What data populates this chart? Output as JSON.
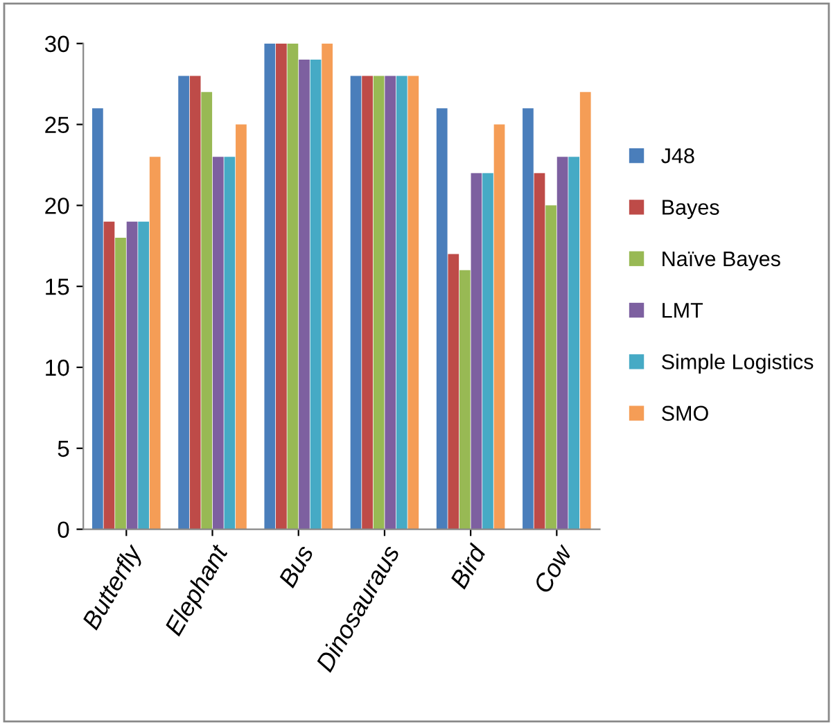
{
  "chart_data": {
    "type": "bar",
    "categories": [
      "Butterfly",
      "Elephant",
      "Bus",
      "Dinosauraus",
      "Bird",
      "Cow"
    ],
    "series": [
      {
        "name": "J48",
        "color": "#4a7ebb",
        "values": [
          26,
          28,
          30,
          28,
          26,
          26
        ]
      },
      {
        "name": "Bayes",
        "color": "#be4b48",
        "values": [
          19,
          28,
          30,
          28,
          17,
          22
        ]
      },
      {
        "name": "Naïve Bayes",
        "color": "#98b954",
        "values": [
          18,
          27,
          30,
          28,
          16,
          20
        ]
      },
      {
        "name": "LMT",
        "color": "#7d60a0",
        "values": [
          19,
          23,
          29,
          28,
          22,
          23
        ]
      },
      {
        "name": "Simple Logistics",
        "color": "#46aac5",
        "values": [
          19,
          23,
          29,
          28,
          22,
          23
        ]
      },
      {
        "name": "SMO",
        "color": "#f59d56",
        "values": [
          23,
          25,
          30,
          28,
          25,
          27
        ]
      }
    ],
    "ylim": [
      0,
      30
    ],
    "yticks": [
      0,
      5,
      10,
      15,
      20,
      25,
      30
    ],
    "grid": false,
    "legend": "right"
  }
}
